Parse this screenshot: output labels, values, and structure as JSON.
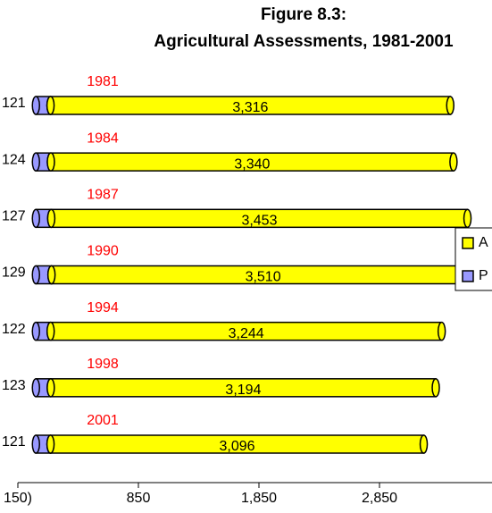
{
  "chart_data": {
    "type": "stacked-bar-horizontal",
    "title": "Figure 8.3:",
    "subtitle": "Agricultural Assessments, 1981-2001",
    "categories": [
      "1981",
      "1984",
      "1987",
      "1990",
      "1994",
      "1998",
      "2001"
    ],
    "series": [
      {
        "name": "P",
        "color": "#9999ff",
        "values": [
          121,
          124,
          127,
          129,
          122,
          123,
          121
        ]
      },
      {
        "name": "A",
        "color": "#ffff00",
        "values": [
          3316,
          3340,
          3453,
          3510,
          3244,
          3194,
          3096
        ],
        "value_labels": [
          "3,316",
          "3,340",
          "3,453",
          "3,510",
          "3,244",
          "3,194",
          "3,096"
        ]
      }
    ],
    "xlim": [
      -150,
      3850
    ],
    "xticks": [
      {
        "value": -150,
        "label": "150)"
      },
      {
        "value": 850,
        "label": "850"
      },
      {
        "value": 1850,
        "label": "1,850"
      },
      {
        "value": 2850,
        "label": "2,850"
      }
    ],
    "legend": "right",
    "category_label_color": "#ff0000"
  }
}
